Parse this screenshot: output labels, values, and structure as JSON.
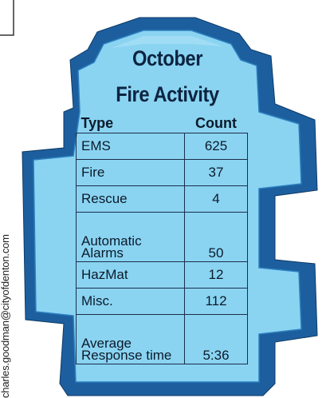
{
  "title": {
    "line1": "October",
    "line2": "Fire Activity"
  },
  "table": {
    "header": [
      "Type",
      "Count"
    ],
    "rows": [
      [
        "EMS",
        625
      ],
      [
        "Fire",
        37
      ],
      [
        "Rescue",
        4
      ],
      [
        "Automatic Alarms",
        50
      ],
      [
        "HazMat",
        12
      ],
      [
        "Misc.",
        112
      ],
      [
        "Average Response time",
        "5:36"
      ]
    ]
  },
  "credit": "charles.goodman@cityofdenton.com"
}
